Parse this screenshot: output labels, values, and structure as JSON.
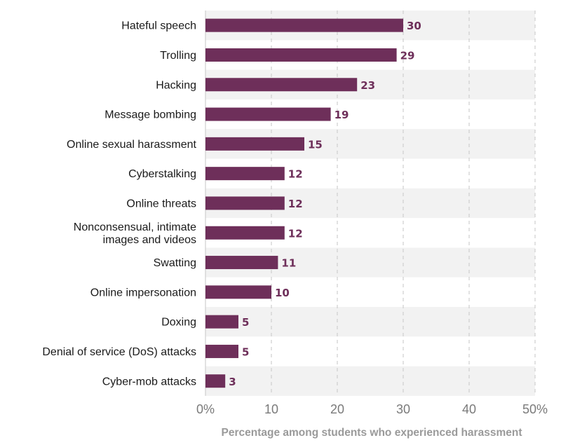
{
  "chart_data": {
    "type": "bar",
    "orientation": "horizontal",
    "categories": [
      "Hateful speech",
      "Trolling",
      "Hacking",
      "Message bombing",
      "Online sexual harassment",
      "Cyberstalking",
      "Online threats",
      [
        "Nonconsensual, intimate",
        "images and videos"
      ],
      "Swatting",
      "Online impersonation",
      "Doxing",
      "Denial of service (DoS) attacks",
      "Cyber-mob attacks"
    ],
    "values": [
      30,
      29,
      23,
      19,
      15,
      12,
      12,
      12,
      11,
      10,
      5,
      5,
      3
    ],
    "xlabel": "Percentage among students who experienced harassment",
    "xlim": [
      0,
      50
    ],
    "xticks": [
      0,
      10,
      20,
      30,
      40,
      50
    ],
    "xtick_labels": [
      "0%",
      "10",
      "20",
      "30",
      "40",
      "50%"
    ],
    "grid": "vertical-dashed",
    "bar_color": "#6e2f5a",
    "band_color": "#f2f2f2"
  }
}
